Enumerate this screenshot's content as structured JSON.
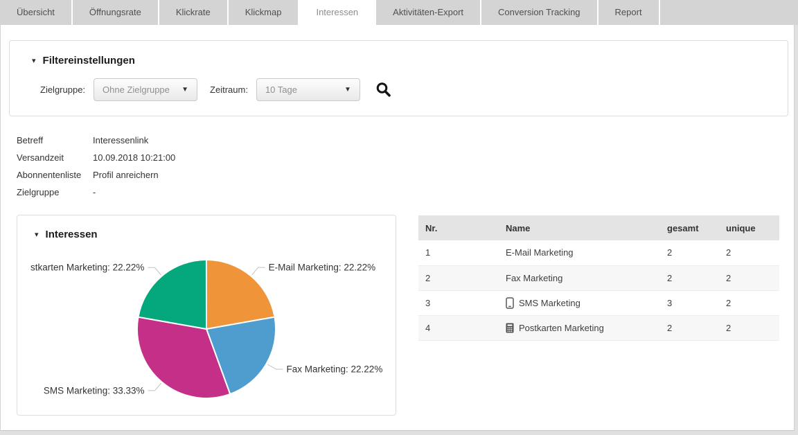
{
  "tabs": {
    "items": [
      {
        "label": "Übersicht"
      },
      {
        "label": "Öffnungsrate"
      },
      {
        "label": "Klickrate"
      },
      {
        "label": "Klickmap"
      },
      {
        "label": "Interessen"
      },
      {
        "label": "Aktivitäten-Export"
      },
      {
        "label": "Conversion Tracking"
      },
      {
        "label": "Report"
      }
    ],
    "active": "Interessen"
  },
  "ui": {
    "caret_down": "▾",
    "dropdown_caret": "▼"
  },
  "filter_panel": {
    "title": "Filtereinstellungen",
    "fields": [
      {
        "label": "Zielgruppe:",
        "value": "Ohne Zielgruppe"
      },
      {
        "label": "Zeitraum:",
        "value": "10 Tage"
      }
    ],
    "search_icon": "magnifier"
  },
  "details": {
    "rows": [
      {
        "label": "Betreff",
        "value": "Interessenlink"
      },
      {
        "label": "Versandzeit",
        "value": "10.09.2018 10:21:00"
      },
      {
        "label": "Abonnentenliste",
        "value": "Profil anreichern"
      },
      {
        "label": "Zielgruppe",
        "value": "-"
      }
    ]
  },
  "interests_panel": {
    "title": "Interessen"
  },
  "chart_data": {
    "type": "pie",
    "title": "Interessen",
    "start_angle_deg": 0,
    "direction": "clockwise",
    "legend": "none",
    "slices": [
      {
        "name": "E-Mail Marketing",
        "pct": 22.22,
        "color": "#ef9439",
        "label": "E-Mail Marketing: 22.22%"
      },
      {
        "name": "Fax Marketing",
        "pct": 22.22,
        "color": "#4f9dcf",
        "label": "Fax Marketing: 22.22%"
      },
      {
        "name": "SMS Marketing",
        "pct": 33.33,
        "color": "#c43087",
        "label": "SMS Marketing: 33.33%"
      },
      {
        "name": "Postkarten Marketing",
        "pct": 22.22,
        "color": "#04a87c",
        "label": "stkarten Marketing: 22.22%"
      }
    ]
  },
  "table": {
    "headers": [
      "Nr.",
      "Name",
      "gesamt",
      "unique"
    ],
    "rows": [
      {
        "nr": "1",
        "icon": null,
        "name": "E-Mail Marketing",
        "gesamt": "2",
        "unique": "2"
      },
      {
        "nr": "2",
        "icon": null,
        "name": "Fax Marketing",
        "gesamt": "2",
        "unique": "2"
      },
      {
        "nr": "3",
        "icon": "mobile-icon",
        "name": "SMS Marketing",
        "gesamt": "3",
        "unique": "2"
      },
      {
        "nr": "4",
        "icon": "calculator-icon",
        "name": "Postkarten Marketing",
        "gesamt": "2",
        "unique": "2"
      }
    ]
  },
  "colors": {
    "tab_bg": "#d4d4d4",
    "active_tab_bg": "#ffffff",
    "table_header_bg": "#e4e4e4",
    "panel_border": "#dcdcdc",
    "leader_line": "#c0c0c0",
    "label_text": "#333333"
  }
}
